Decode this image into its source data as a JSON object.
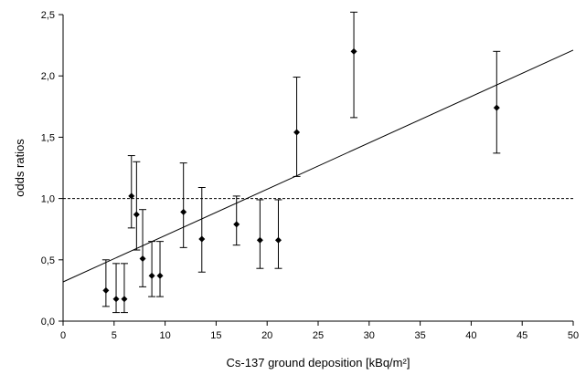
{
  "chart_data": {
    "type": "scatter",
    "xlabel": "Cs-137 ground deposition [kBq/m²]",
    "ylabel": "odds ratios",
    "xlim": [
      0,
      50
    ],
    "ylim": [
      0,
      2.5
    ],
    "x_ticks": [
      0,
      5,
      10,
      15,
      20,
      25,
      30,
      35,
      40,
      45,
      50
    ],
    "x_tick_labels": [
      "0",
      "5",
      "10",
      "15",
      "20",
      "25",
      "30",
      "35",
      "40",
      "45",
      "50"
    ],
    "y_ticks": [
      0,
      0.5,
      1.0,
      1.5,
      2.0,
      2.5
    ],
    "y_tick_labels": [
      "0,0",
      "0,5",
      "1,0",
      "1,5",
      "2,0",
      "2,5"
    ],
    "grid": false,
    "reference_line": {
      "y": 1.0,
      "style": "dashed"
    },
    "trend_line": {
      "x": [
        0,
        50
      ],
      "y": [
        0.32,
        2.21
      ]
    },
    "points": [
      {
        "x": 4.2,
        "y": 0.25,
        "lo": 0.12,
        "hi": 0.5
      },
      {
        "x": 5.2,
        "y": 0.18,
        "lo": 0.07,
        "hi": 0.47
      },
      {
        "x": 6.0,
        "y": 0.18,
        "lo": 0.07,
        "hi": 0.47
      },
      {
        "x": 6.7,
        "y": 1.02,
        "lo": 0.76,
        "hi": 1.35
      },
      {
        "x": 7.2,
        "y": 0.87,
        "lo": 0.58,
        "hi": 1.3
      },
      {
        "x": 7.8,
        "y": 0.51,
        "lo": 0.28,
        "hi": 0.91
      },
      {
        "x": 8.7,
        "y": 0.37,
        "lo": 0.2,
        "hi": 0.65
      },
      {
        "x": 9.5,
        "y": 0.37,
        "lo": 0.2,
        "hi": 0.65
      },
      {
        "x": 11.8,
        "y": 0.89,
        "lo": 0.6,
        "hi": 1.29
      },
      {
        "x": 13.6,
        "y": 0.67,
        "lo": 0.4,
        "hi": 1.09
      },
      {
        "x": 17.0,
        "y": 0.79,
        "lo": 0.62,
        "hi": 1.02
      },
      {
        "x": 19.3,
        "y": 0.66,
        "lo": 0.43,
        "hi": 0.99
      },
      {
        "x": 21.1,
        "y": 0.66,
        "lo": 0.43,
        "hi": 0.99
      },
      {
        "x": 22.9,
        "y": 1.54,
        "lo": 1.18,
        "hi": 1.99
      },
      {
        "x": 28.5,
        "y": 2.2,
        "lo": 1.66,
        "hi": 2.52
      },
      {
        "x": 42.5,
        "y": 1.74,
        "lo": 1.37,
        "hi": 2.2
      }
    ]
  }
}
